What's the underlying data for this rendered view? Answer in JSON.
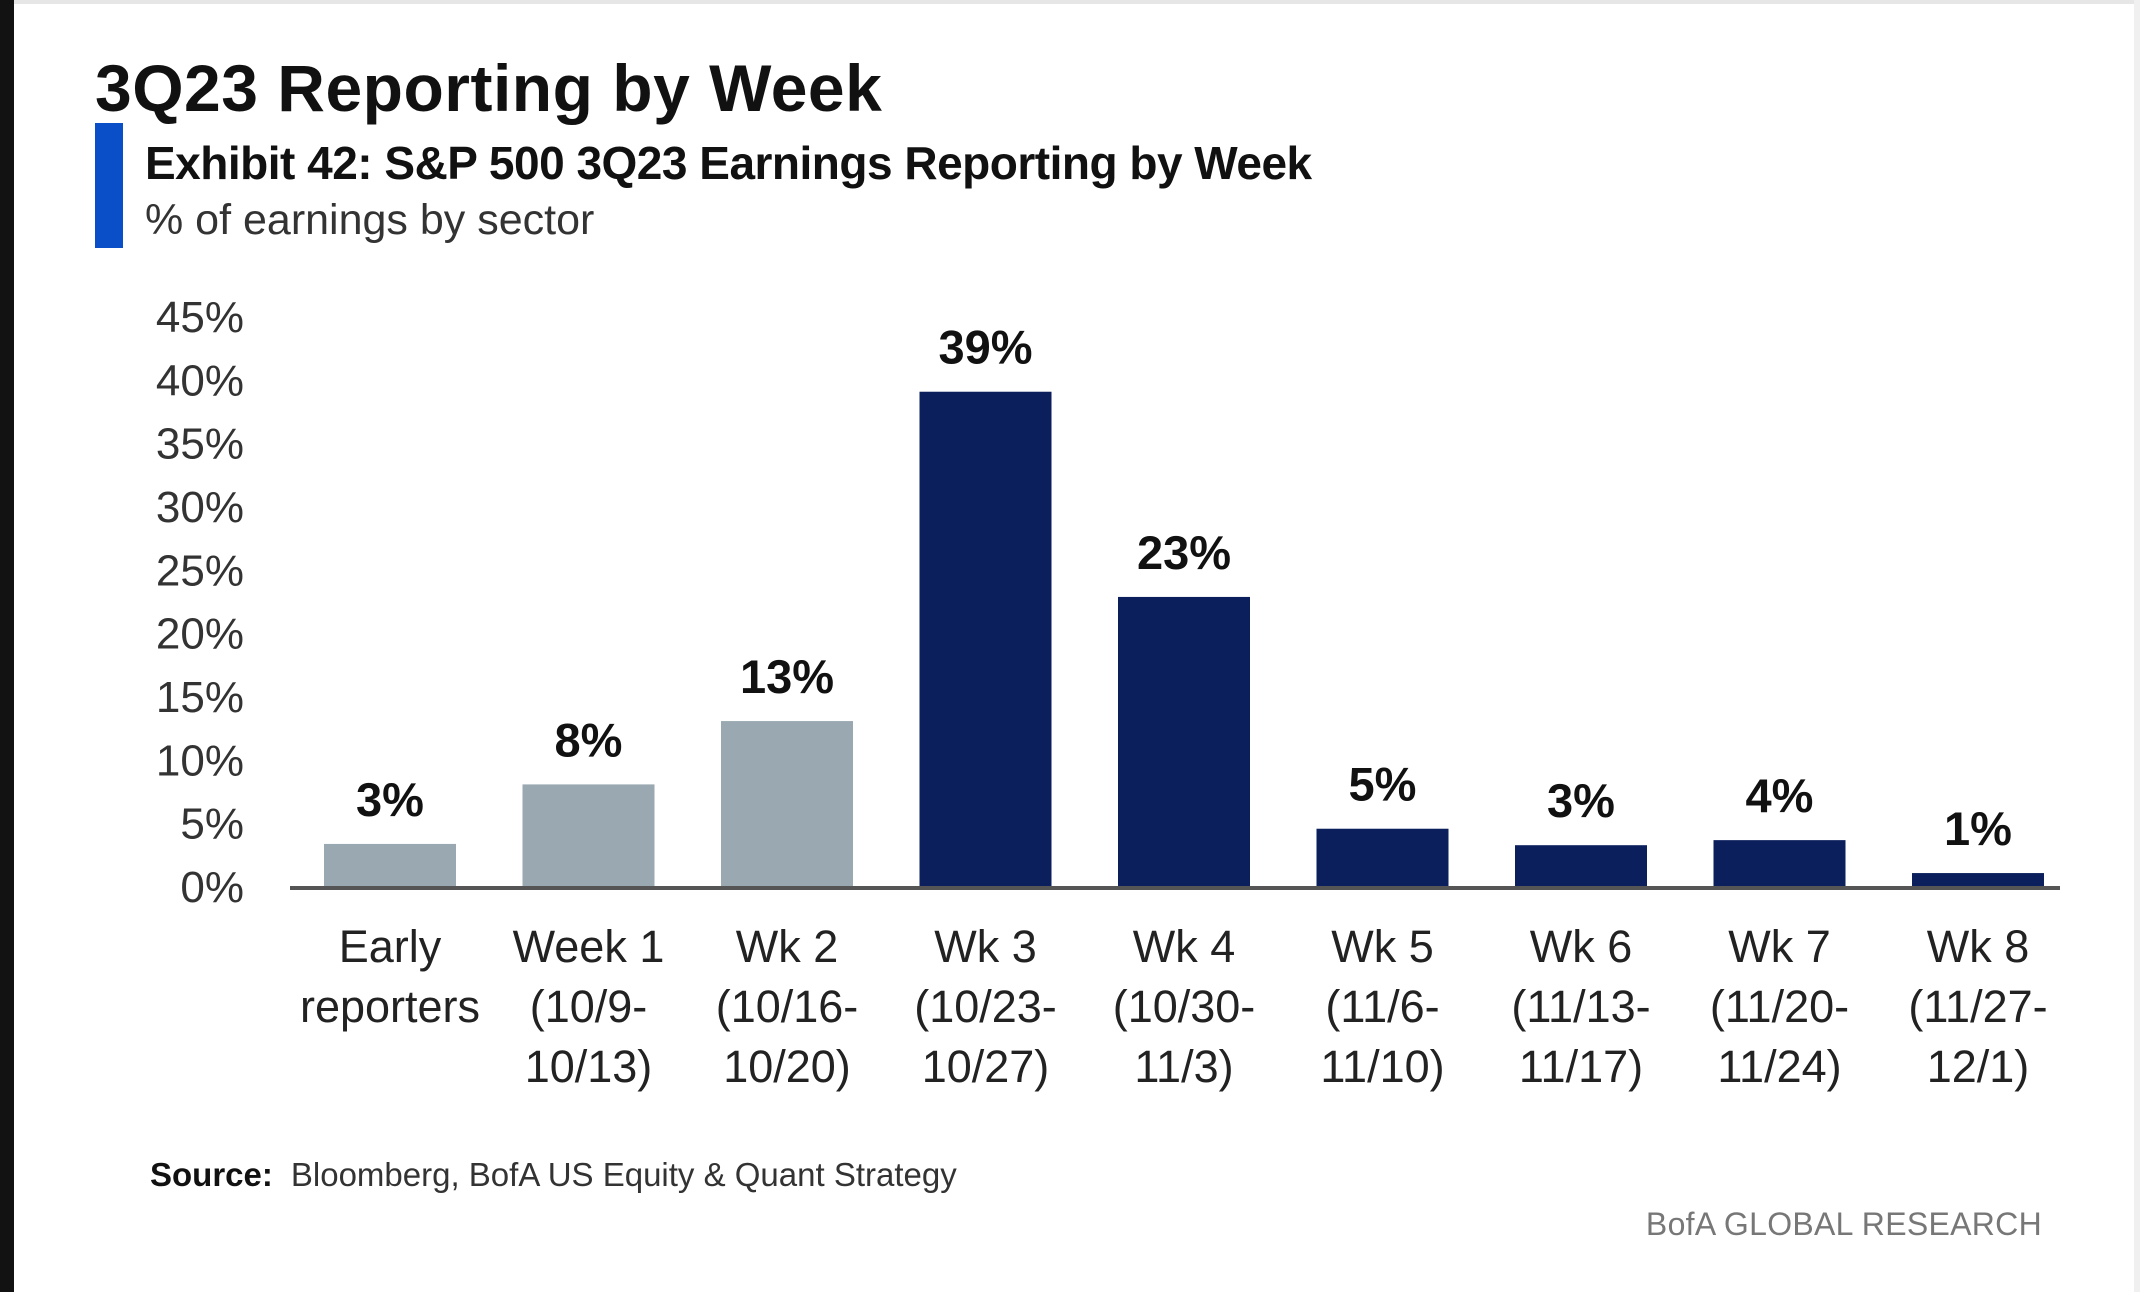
{
  "header": {
    "page_title": "3Q23 Reporting by Week",
    "exhibit_title": "Exhibit 42: S&P 500 3Q23 Earnings Reporting by Week",
    "exhibit_subtitle": "% of earnings by sector"
  },
  "footer": {
    "source_label": "Source:",
    "source_text": "Bloomberg, BofA US Equity & Quant Strategy",
    "brand": "BofA GLOBAL RESEARCH"
  },
  "colors": {
    "accent_bar": "#0b4fc8",
    "bar_gray": "#9aa8b1",
    "bar_navy": "#0a1f5c",
    "axis_line": "#555555"
  },
  "chart_data": {
    "type": "bar",
    "title": "Exhibit 42: S&P 500 3Q23 Earnings Reporting by Week",
    "subtitle": "% of earnings by sector",
    "xlabel": "",
    "ylabel": "",
    "ylim": [
      0,
      45
    ],
    "yticks": [
      0,
      5,
      10,
      15,
      20,
      25,
      30,
      35,
      40,
      45
    ],
    "ytick_labels": [
      "0%",
      "5%",
      "10%",
      "15%",
      "20%",
      "25%",
      "30%",
      "35%",
      "40%",
      "45%"
    ],
    "grid": false,
    "legend": "none",
    "categories": [
      [
        "Early",
        "reporters"
      ],
      [
        "Week 1",
        "(10/9-",
        "10/13)"
      ],
      [
        "Wk 2",
        "(10/16-",
        "10/20)"
      ],
      [
        "Wk 3",
        "(10/23-",
        "10/27)"
      ],
      [
        "Wk 4",
        "(10/30-",
        "11/3)"
      ],
      [
        "Wk 5",
        "(11/6-",
        "11/10)"
      ],
      [
        "Wk 6",
        "(11/13-",
        "11/17)"
      ],
      [
        "Wk 7",
        "(11/20-",
        "11/24)"
      ],
      [
        "Wk 8",
        "(11/27-",
        "12/1)"
      ]
    ],
    "values": [
      3.4,
      8.1,
      13.1,
      39.1,
      22.9,
      4.6,
      3.3,
      3.7,
      1.1
    ],
    "data_labels": [
      "3%",
      "8%",
      "13%",
      "39%",
      "23%",
      "5%",
      "3%",
      "4%",
      "1%"
    ],
    "bar_colors": [
      "gray",
      "gray",
      "gray",
      "navy",
      "navy",
      "navy",
      "navy",
      "navy",
      "navy"
    ]
  }
}
